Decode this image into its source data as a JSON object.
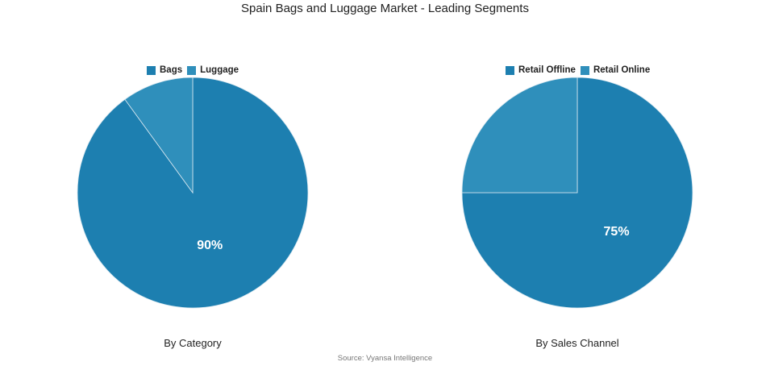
{
  "title": "Spain Bags and Luggage Market - Leading Segments",
  "source": "Source: Vyansa Intelligence",
  "colors": {
    "primary": "#1d7fb0",
    "secondary": "#2f8fbb",
    "label": "#ffffff",
    "divider": "#dbe9f1"
  },
  "chart_data": [
    {
      "type": "pie",
      "subtitle": "By Category",
      "slices": [
        {
          "name": "Bags",
          "value": 90,
          "label": "90%"
        },
        {
          "name": "Luggage",
          "value": 10,
          "label": ""
        }
      ],
      "legend_position": "top"
    },
    {
      "type": "pie",
      "subtitle": "By Sales Channel",
      "slices": [
        {
          "name": "Retail Offline",
          "value": 75,
          "label": "75%"
        },
        {
          "name": "Retail Online",
          "value": 25,
          "label": ""
        }
      ],
      "legend_position": "top"
    }
  ]
}
